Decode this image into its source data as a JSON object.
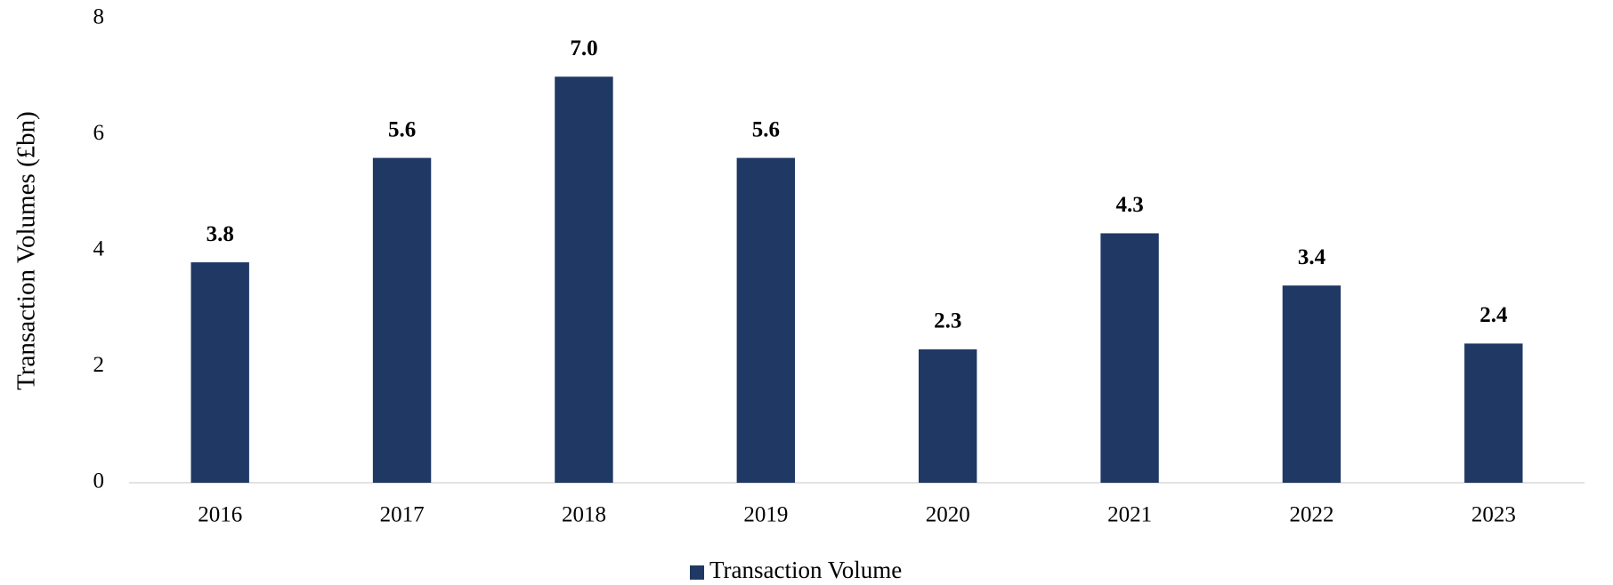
{
  "chart_data": {
    "type": "bar",
    "y_label": "Transaction Volumes (£bn)",
    "categories": [
      "2016",
      "2017",
      "2018",
      "2019",
      "2020",
      "2021",
      "2022",
      "2023"
    ],
    "series": [
      {
        "name": "Transaction Volume",
        "color": "#203864",
        "values": [
          3.8,
          5.6,
          7.0,
          5.6,
          2.3,
          4.3,
          3.4,
          2.4
        ],
        "value_labels": [
          "3.8",
          "5.6",
          "7.0",
          "5.6",
          "2.3",
          "4.3",
          "3.4",
          "2.4"
        ]
      }
    ],
    "ylim": [
      0,
      8
    ],
    "yticks": [
      0,
      2,
      4,
      6,
      8
    ],
    "grid": false,
    "legend": "bottom"
  }
}
